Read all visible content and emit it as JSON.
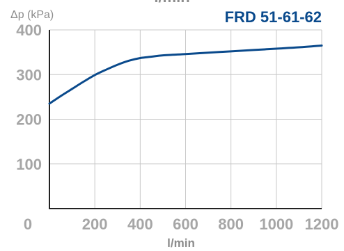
{
  "chart_data": {
    "type": "line",
    "title": "FRD 51-61-62",
    "xlabel": "l/min",
    "ylabel": "Δp (kPa)",
    "top_cut_label": "l/min",
    "xlim": [
      0,
      1200
    ],
    "ylim": [
      0,
      400
    ],
    "grid": true,
    "x_ticks": [
      200,
      400,
      600,
      800,
      1000,
      1200
    ],
    "y_ticks": [
      100,
      200,
      300,
      400
    ],
    "x_tick_labels": [
      "200",
      "400",
      "600",
      "800",
      "1000",
      "1200"
    ],
    "y_tick_labels": [
      "100",
      "200",
      "300",
      "400"
    ],
    "origin_label": "0",
    "series": [
      {
        "x": [
          0,
          50,
          100,
          150,
          200,
          250,
          300,
          350,
          400,
          450,
          500,
          600,
          700,
          800,
          900,
          1000,
          1100,
          1200
        ],
        "y": [
          235,
          252,
          268,
          284,
          299,
          311,
          322,
          331,
          337,
          340,
          343,
          346,
          349,
          352,
          355,
          358,
          361,
          365
        ]
      }
    ],
    "colors": {
      "series": "#0a4a8c",
      "title": "#0a4a8c",
      "axis_text": "#a6a6a6",
      "ylabel": "#8c8c8c",
      "grid": "#c8c8c8",
      "axis": "#222222"
    }
  }
}
